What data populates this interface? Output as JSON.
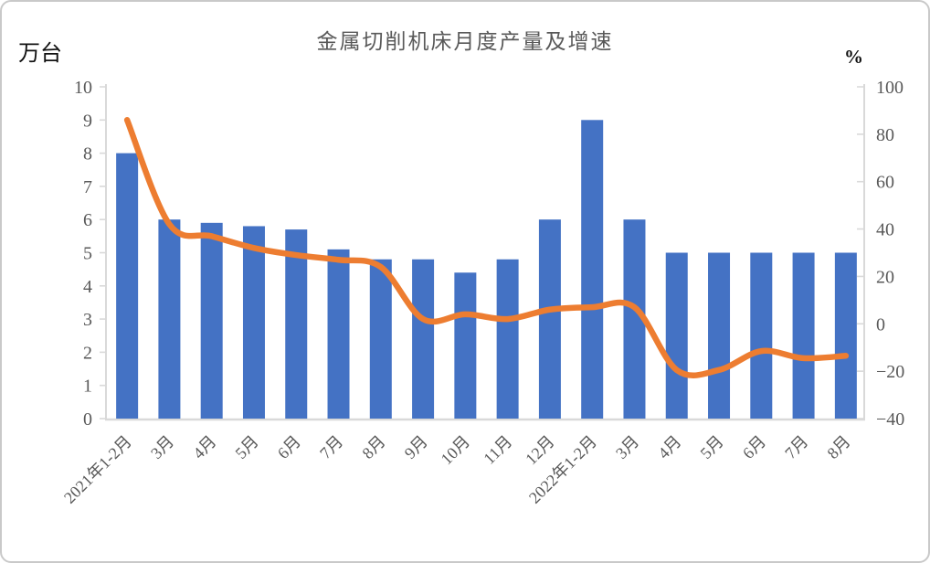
{
  "figure": {
    "title": "金属切削机床月度产量及增速",
    "left_unit": "万台",
    "right_unit": "%"
  },
  "chart_data": {
    "type": "combo-bar-line",
    "title": "金属切削机床月度产量及增速",
    "categories": [
      "2021年1-2月",
      "3月",
      "4月",
      "5月",
      "6月",
      "7月",
      "8月",
      "9月",
      "10月",
      "11月",
      "12月",
      "2022年1-2月",
      "3月",
      "4月",
      "5月",
      "6月",
      "7月",
      "8月"
    ],
    "series": [
      {
        "name": "月度产量",
        "type": "bar",
        "unit": "万台",
        "axis": "left",
        "color": "#4472C4",
        "values": [
          8.0,
          6.0,
          5.9,
          5.8,
          5.7,
          5.1,
          4.8,
          4.8,
          4.4,
          4.8,
          6.0,
          9.0,
          6.0,
          5.0,
          5.0,
          5.0,
          5.0,
          5.0
        ]
      },
      {
        "name": "增速",
        "type": "line",
        "unit": "%",
        "axis": "right",
        "color": "#ED7D31",
        "smooth": true,
        "values": [
          86,
          42,
          37,
          32,
          29,
          27,
          24,
          2,
          4,
          2,
          6,
          7,
          7,
          -19.5,
          -19.5,
          -11.5,
          -14.5,
          -13.5
        ]
      }
    ],
    "left_axis": {
      "label": "万台",
      "min": 0,
      "max": 10,
      "step": 1
    },
    "right_axis": {
      "label": "%",
      "min": -40,
      "max": 100,
      "step": 20
    },
    "axis_line_color": "#D9D9D9",
    "tick_label_color": "#595959",
    "grid": false,
    "legend_position": "none",
    "x_label_rotation": -45
  }
}
